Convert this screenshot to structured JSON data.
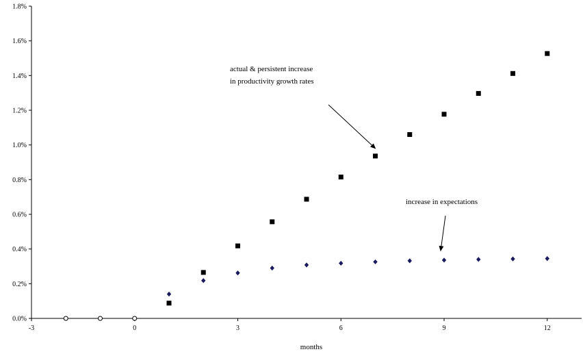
{
  "chart_data": {
    "type": "scatter",
    "title": "",
    "xlabel": "months",
    "ylabel": "",
    "xlim": [
      -3,
      13
    ],
    "ylim": [
      0,
      0.018
    ],
    "grid": false,
    "legend": "none",
    "x_ticks": [
      -3,
      0,
      3,
      6,
      9,
      12
    ],
    "x_tick_labels": [
      "-3",
      "0",
      "3",
      "6",
      "9",
      "12"
    ],
    "y_ticks": [
      0,
      0.002,
      0.004,
      0.006,
      0.008,
      0.01,
      0.012,
      0.014,
      0.016,
      0.018
    ],
    "y_tick_labels": [
      "0.0%",
      "0.2%",
      "0.4%",
      "0.6%",
      "0.8%",
      "1.0%",
      "1.2%",
      "1.4%",
      "1.6%",
      "1.8%"
    ],
    "series": [
      {
        "marker": "circle-open",
        "color": "#000000",
        "x": [
          -2,
          -1,
          0
        ],
        "y": [
          0,
          0,
          0
        ]
      },
      {
        "marker": "square",
        "color": "#000000",
        "x": [
          1,
          2,
          3,
          4,
          5,
          6,
          7,
          8,
          9,
          10,
          11,
          12
        ],
        "y": [
          0.00088,
          0.00265,
          0.00418,
          0.00557,
          0.00687,
          0.00815,
          0.00936,
          0.0106,
          0.01177,
          0.01297,
          0.01412,
          0.01527
        ]
      },
      {
        "marker": "diamond",
        "color": "#1a1a5e",
        "x": [
          1,
          2,
          3,
          4,
          5,
          6,
          7,
          8,
          9,
          10,
          11,
          12
        ],
        "y": [
          0.0014,
          0.00218,
          0.00262,
          0.0029,
          0.00308,
          0.00318,
          0.00326,
          0.00332,
          0.00336,
          0.0034,
          0.00343,
          0.00345
        ]
      }
    ],
    "annotations": [
      {
        "lines": [
          "actual & persistent increase",
          "in productivity growth rates"
        ],
        "arrow_to": [
          7,
          0.0098
        ]
      },
      {
        "lines": [
          "increase in expectations"
        ],
        "arrow_to": [
          8.9,
          0.0039
        ]
      }
    ]
  }
}
